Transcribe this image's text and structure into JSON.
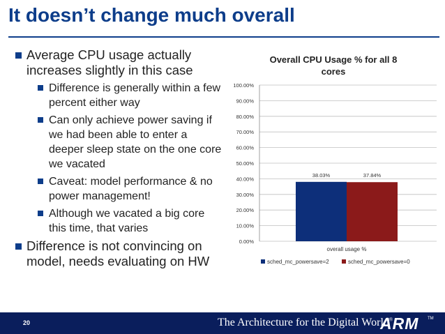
{
  "slide": {
    "title": "It doesn’t change much overall",
    "bullets": [
      {
        "level": 1,
        "text": "Average CPU usage actually increases slightly in this case"
      },
      {
        "level": 2,
        "text": "Difference is generally within a few percent either way"
      },
      {
        "level": 2,
        "text": "Can only achieve power saving if we had been able to enter a deeper sleep state on the one core we vacated"
      },
      {
        "level": 2,
        "text": "Caveat: model performance & no power management!"
      },
      {
        "level": 2,
        "text": "Although we vacated a big core this time, that varies"
      },
      {
        "level": 1,
        "text": "Difference is not convincing on model, needs evaluating on HW"
      }
    ]
  },
  "footer": {
    "page_number": "20",
    "tagline": "The Architecture for the Digital World",
    "tagline_mark": "®",
    "logo_text": "ARM",
    "logo_mark": "TM"
  },
  "colors": {
    "title": "#0d3d8a",
    "series1": "#0d2f7a",
    "series2": "#8b1a1a",
    "footer_bg": "#0a1e5c"
  },
  "chart_data": {
    "type": "bar",
    "title": "Overall CPU Usage % for all 8 cores",
    "categories": [
      "overall usage %"
    ],
    "series": [
      {
        "name": "sched_mc_powersave=2",
        "values": [
          38.03
        ],
        "label": "38.03%"
      },
      {
        "name": "sched_mc_powersave=0",
        "values": [
          37.84
        ],
        "label": "37.84%"
      }
    ],
    "ylim": [
      0,
      100
    ],
    "yticks": [
      "0.00%",
      "10.00%",
      "20.00%",
      "30.00%",
      "40.00%",
      "50.00%",
      "60.00%",
      "70.00%",
      "80.00%",
      "90.00%",
      "100.00%"
    ],
    "grid": true,
    "legend": "bottom"
  }
}
